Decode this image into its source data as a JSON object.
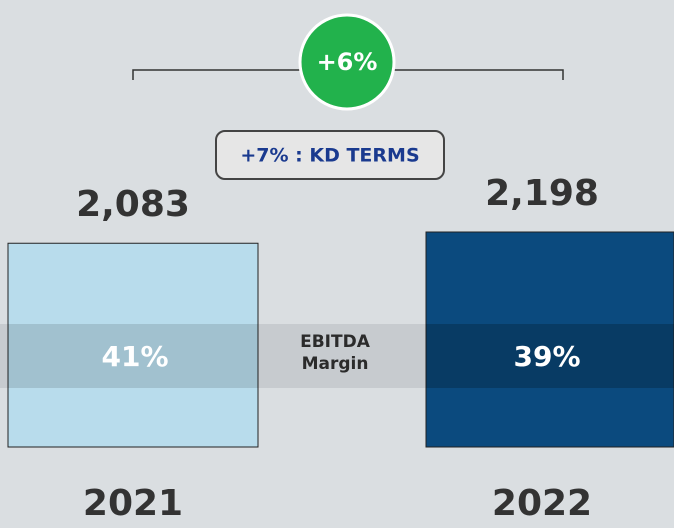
{
  "chart_data": {
    "type": "bar",
    "categories": [
      "2021",
      "2022"
    ],
    "values": [
      2083,
      2198
    ],
    "value_labels": [
      "2,083",
      "2,198"
    ],
    "colors": [
      "#b8dcec",
      "#0b4a7e"
    ],
    "margins": {
      "label": "EBITDA Margin",
      "values": [
        41,
        39
      ],
      "value_labels": [
        "41%",
        "39%"
      ]
    },
    "annotations": [
      "+6%",
      "+7% : KD TERMS"
    ]
  }
}
